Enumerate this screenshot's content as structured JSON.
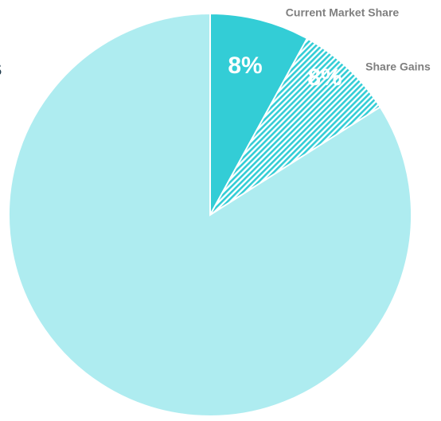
{
  "chart_data": {
    "type": "pie",
    "title": "s",
    "categories": [
      "Current Market Share",
      "Share Gains",
      null
    ],
    "values": [
      8,
      8,
      84
    ],
    "value_labels": [
      "8%",
      "8%",
      null
    ],
    "colors": [
      "#33cdd6",
      "#33cdd6",
      "#aeecf0"
    ],
    "hatch": [
      false,
      true,
      false
    ]
  }
}
